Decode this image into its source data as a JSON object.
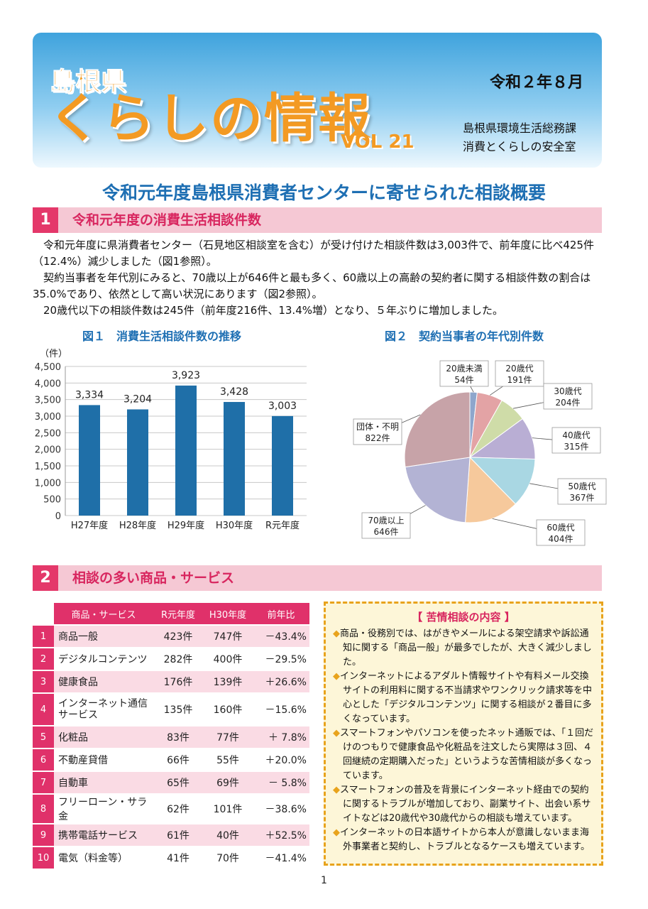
{
  "header": {
    "prefecture": "島根県",
    "title": "くらしの情報",
    "volume": "VOL 21",
    "date": "令和２年８月",
    "department_line1": "島根県環境生活総務課",
    "department_line2": "消費とくらしの安全室"
  },
  "headline": "令和元年度島根県消費者センターに寄せられた相談概要",
  "section1": {
    "number": "1",
    "title": "令和元年度の消費生活相談件数",
    "paragraphs": [
      "令和元年度に県消費者センター（石見地区相談室を含む）が受け付けた相談件数は3,003件で、前年度に比べ425件（12.4%）減少しました（図1参照）。",
      "契約当事者を年代別にみると、70歳以上が646件と最も多く、60歳以上の高齢の契約者に関する相談件数の割合は35.0%であり、依然として高い状況にあります（図2参照）。",
      "20歳代以下の相談件数は245件（前年度216件、13.4%増）となり、５年ぶりに増加しました。"
    ]
  },
  "chart_data": [
    {
      "type": "bar",
      "title": "図１　消費生活相談件数の推移",
      "ylabel": "（件）",
      "categories": [
        "H27年度",
        "H28年度",
        "H29年度",
        "H30年度",
        "R元年度"
      ],
      "values": [
        3334,
        3204,
        3923,
        3428,
        3003
      ],
      "value_labels": [
        "3,334",
        "3,204",
        "3,923",
        "3,428",
        "3,003"
      ],
      "yticks": [
        "4,500",
        "4,000",
        "3,500",
        "3,000",
        "2,500",
        "2,000",
        "1,500",
        "1,000",
        "500",
        "0"
      ],
      "ylim": [
        0,
        4500
      ],
      "grid": true,
      "bar_color": "#1f6fa8"
    },
    {
      "type": "pie",
      "title": "図２　契約当事者の年代別件数",
      "slices": [
        {
          "label": "20歳未満",
          "value": 54,
          "value_label": "54件",
          "color": "#8ea6cc"
        },
        {
          "label": "20歳代",
          "value": 191,
          "value_label": "191件",
          "color": "#e3a3a5"
        },
        {
          "label": "30歳代",
          "value": 204,
          "value_label": "204件",
          "color": "#cfdca8"
        },
        {
          "label": "40歳代",
          "value": 315,
          "value_label": "315件",
          "color": "#b9aed4"
        },
        {
          "label": "50歳代",
          "value": 367,
          "value_label": "367件",
          "color": "#a9d7e3"
        },
        {
          "label": "60歳代",
          "value": 404,
          "value_label": "404件",
          "color": "#f6c99c"
        },
        {
          "label": "70歳以上",
          "value": 646,
          "value_label": "646件",
          "color": "#b3b3d4"
        },
        {
          "label": "団体・不明",
          "value": 822,
          "value_label": "822件",
          "color": "#c7a3a8"
        }
      ]
    }
  ],
  "section2": {
    "number": "2",
    "title": "相談の多い商品・サービス",
    "table": {
      "headers": [
        "商品・サービス",
        "R元年度",
        "H30年度",
        "前年比"
      ],
      "rows": [
        {
          "rank": "1",
          "name": "商品一般",
          "r1": "423件",
          "h30": "747件",
          "ratio": "－43.4%"
        },
        {
          "rank": "2",
          "name": "デジタルコンテンツ",
          "r1": "282件",
          "h30": "400件",
          "ratio": "－29.5%"
        },
        {
          "rank": "3",
          "name": "健康食品",
          "r1": "176件",
          "h30": "139件",
          "ratio": "＋26.6%"
        },
        {
          "rank": "4",
          "name": "インターネット通信サービス",
          "r1": "135件",
          "h30": "160件",
          "ratio": "－15.6%"
        },
        {
          "rank": "5",
          "name": "化粧品",
          "r1": "83件",
          "h30": "77件",
          "ratio": "＋ 7.8%"
        },
        {
          "rank": "6",
          "name": "不動産貸借",
          "r1": "66件",
          "h30": "55件",
          "ratio": "＋20.0%"
        },
        {
          "rank": "7",
          "name": "自動車",
          "r1": "65件",
          "h30": "69件",
          "ratio": "－ 5.8%"
        },
        {
          "rank": "8",
          "name": "フリーローン・サラ金",
          "r1": "62件",
          "h30": "101件",
          "ratio": "－38.6%"
        },
        {
          "rank": "9",
          "name": "携帯電話サービス",
          "r1": "61件",
          "h30": "40件",
          "ratio": "＋52.5%"
        },
        {
          "rank": "10",
          "name": "電気（料金等）",
          "r1": "41件",
          "h30": "70件",
          "ratio": "－41.4%"
        }
      ]
    },
    "complaints": {
      "title": "【 苦情相談の内容 】",
      "items": [
        "商品・役務別では、はがきやメールによる架空請求や訴訟通知に関する「商品一般」が最多でしたが、大きく減少しました。",
        "インターネットによるアダルト情報サイトや有料メール交換サイトの利用料に関する不当請求やワンクリック請求等を中心とした「デジタルコンテンツ」に関する相談が２番目に多くなっています。",
        "スマートフォンやパソコンを使ったネット通販では、「１回だけのつもりで健康食品や化粧品を注文したら実際は３回、４回継続の定期購入だった」というような苦情相談が多くなっています。",
        "スマートフォンの普及を背景にインターネット経由での契約に関するトラブルが増加しており、副業サイト、出会い系サイトなどは20歳代や30歳代からの相談も増えています。",
        "インターネットの日本語サイトから本人が意識しないまま海外事業者と契約し、トラブルとなるケースも増えています。"
      ]
    }
  },
  "page_number": "1"
}
